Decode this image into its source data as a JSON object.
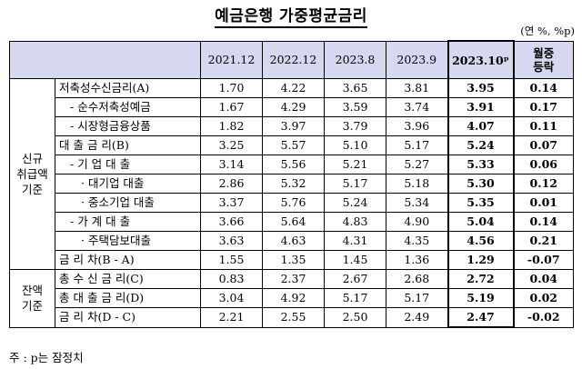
{
  "title": "예금은행 가중평균금리",
  "unit": "(연 %, %p)",
  "headers": [
    "2021.12",
    "2022.12",
    "2023.8",
    "2023.9",
    "2023.10ᵖ"
  ],
  "change_header": "월중\n등락",
  "groups": [
    {
      "label": "신규\n취급액\n기준",
      "rows": [
        {
          "label": "저축성수신금리(A)",
          "indent": 0,
          "values": [
            "1.70",
            "4.22",
            "3.65",
            "3.81",
            "3.95"
          ],
          "change": "0.14"
        },
        {
          "label": "- 순수저축성예금",
          "indent": 1,
          "values": [
            "1.67",
            "4.29",
            "3.59",
            "3.74",
            "3.91"
          ],
          "change": "0.17"
        },
        {
          "label": "- 시장형금융상품",
          "indent": 1,
          "values": [
            "1.82",
            "3.97",
            "3.79",
            "3.96",
            "4.07"
          ],
          "change": "0.11"
        },
        {
          "label": "대 출 금 리(B)",
          "indent": 0,
          "values": [
            "3.25",
            "5.57",
            "5.10",
            "5.17",
            "5.24"
          ],
          "change": "0.07"
        },
        {
          "label": "- 기 업 대 출",
          "indent": 1,
          "values": [
            "3.14",
            "5.56",
            "5.21",
            "5.27",
            "5.33"
          ],
          "change": "0.06"
        },
        {
          "label": "· 대기업 대출",
          "indent": 2,
          "values": [
            "2.86",
            "5.32",
            "5.17",
            "5.18",
            "5.30"
          ],
          "change": "0.12"
        },
        {
          "label": "· 중소기업 대출",
          "indent": 2,
          "values": [
            "3.37",
            "5.76",
            "5.24",
            "5.34",
            "5.35"
          ],
          "change": "0.01"
        },
        {
          "label": "- 가 계 대 출",
          "indent": 1,
          "values": [
            "3.66",
            "5.64",
            "4.83",
            "4.90",
            "5.04"
          ],
          "change": "0.14"
        },
        {
          "label": "· 주택담보대출",
          "indent": 2,
          "values": [
            "3.63",
            "4.63",
            "4.31",
            "4.35",
            "4.56"
          ],
          "change": "0.21"
        },
        {
          "label": "금 리 차(B - A)",
          "indent": 0,
          "values": [
            "1.55",
            "1.35",
            "1.45",
            "1.36",
            "1.29"
          ],
          "change": "-0.07"
        }
      ]
    },
    {
      "label": "잔액\n기준",
      "rows": [
        {
          "label": "총 수 신 금 리(C)",
          "indent": 0,
          "values": [
            "0.83",
            "2.37",
            "2.67",
            "2.68",
            "2.72"
          ],
          "change": "0.04"
        },
        {
          "label": "총 대 출 금 리(D)",
          "indent": 0,
          "values": [
            "3.04",
            "4.92",
            "5.17",
            "5.17",
            "5.19"
          ],
          "change": "0.02"
        },
        {
          "label": "금 리 차(D - C)",
          "indent": 0,
          "values": [
            "2.21",
            "2.55",
            "2.50",
            "2.49",
            "2.47"
          ],
          "change": "-0.02"
        }
      ]
    }
  ],
  "footnote": "주 : p는 잠정치"
}
